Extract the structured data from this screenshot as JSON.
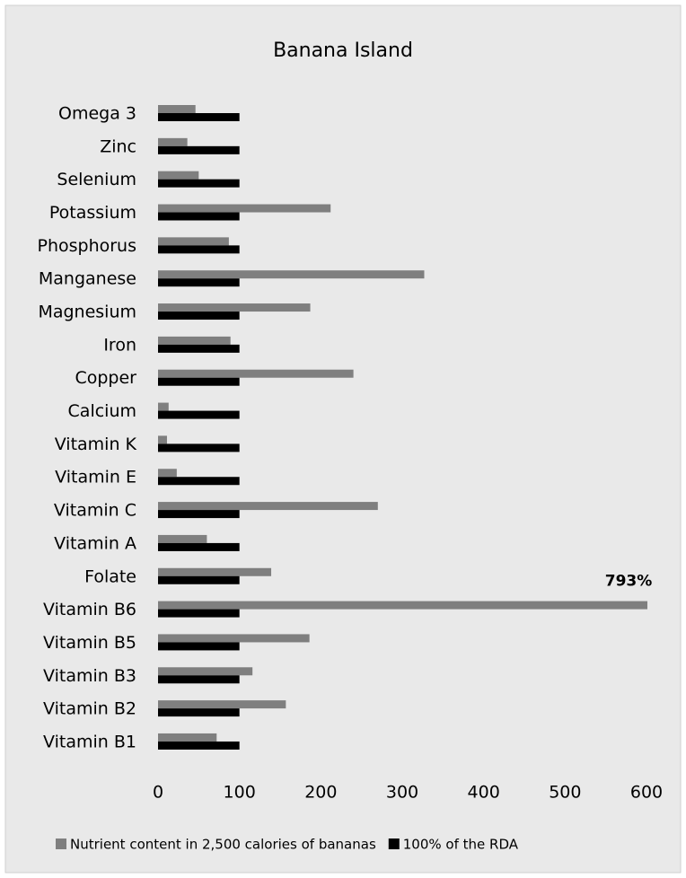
{
  "chart_data": {
    "type": "barh",
    "title": "Banana Island",
    "categories": [
      "Omega 3",
      "Zinc",
      "Selenium",
      "Potassium",
      "Phosphorus",
      "Manganese",
      "Magnesium",
      "Iron",
      "Copper",
      "Calcium",
      "Vitamin K",
      "Vitamin E",
      "Vitamin C",
      "Vitamin A",
      "Folate",
      "Vitamin B6",
      "Vitamin B5",
      "Vitamin B3",
      "Vitamin B2",
      "Vitamin B1"
    ],
    "series": [
      {
        "name": "Nutrient content in 2,500 calories of bananas",
        "color": "#7f7f7f",
        "values": [
          46,
          36,
          50,
          212,
          87,
          327,
          187,
          89,
          240,
          13,
          11,
          23,
          270,
          60,
          139,
          793,
          186,
          116,
          157,
          72
        ],
        "value_labels": [
          null,
          null,
          null,
          null,
          null,
          null,
          null,
          null,
          null,
          null,
          null,
          null,
          null,
          null,
          null,
          "793%",
          null,
          null,
          null,
          null
        ]
      },
      {
        "name": "100% of the RDA",
        "color": "#000000",
        "values": [
          100,
          100,
          100,
          100,
          100,
          100,
          100,
          100,
          100,
          100,
          100,
          100,
          100,
          100,
          100,
          100,
          100,
          100,
          100,
          100
        ]
      }
    ],
    "xlim": [
      0,
      600
    ],
    "xticks": [
      0,
      100,
      200,
      300,
      400,
      500,
      600
    ],
    "legend": "bottom"
  }
}
